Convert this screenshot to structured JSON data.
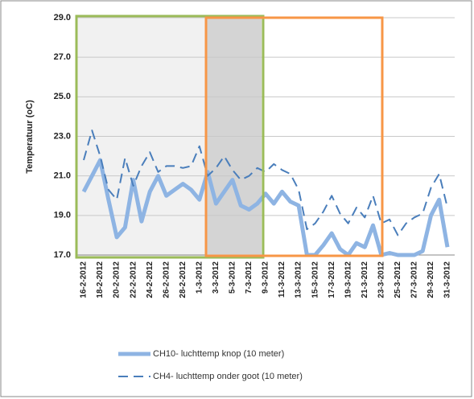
{
  "chart_data": {
    "type": "line",
    "y_label": "Temperatuur (oC)",
    "categories": [
      "16-2-2012",
      null,
      "18-2-2012",
      null,
      "20-2-2012",
      null,
      "22-2-2012",
      null,
      "24-2-2012",
      null,
      "26-2-2012",
      null,
      "28-2-2012",
      null,
      "1-3-2012",
      null,
      "3-3-2012",
      null,
      "5-3-2012",
      null,
      "7-3-2012",
      null,
      "9-3-2012",
      null,
      "11-3-2012",
      null,
      "13-3-2012",
      null,
      "15-3-2012",
      null,
      "17-3-2012",
      null,
      "19-3-2012",
      null,
      "21-3-2012",
      null,
      "23-3-2012",
      null,
      "25-3-2012",
      null,
      "27-3-2012",
      null,
      "29-3-2012",
      null,
      "31-3-2012"
    ],
    "series": [
      {
        "name": "CH10- luchttemp knop (10 meter)",
        "color": "#8eb4e3",
        "style": "solid",
        "values": [
          20.2,
          21.0,
          21.8,
          19.8,
          17.9,
          18.4,
          20.8,
          18.7,
          20.2,
          21.0,
          20.0,
          20.3,
          20.6,
          20.3,
          19.8,
          21.2,
          19.6,
          20.2,
          20.8,
          19.5,
          19.3,
          19.6,
          20.1,
          19.6,
          20.2,
          19.7,
          19.5,
          17.0,
          17.0,
          17.5,
          18.1,
          17.3,
          17.0,
          17.6,
          17.4,
          18.5,
          17.0,
          17.1,
          17.0,
          17.0,
          17.0,
          17.2,
          19.0,
          19.8,
          17.4
        ]
      },
      {
        "name": "CH4- luchttemp onder goot (10 meter)",
        "color": "#4a7ebb",
        "style": "dashed",
        "values": [
          21.8,
          23.3,
          22.0,
          20.3,
          19.8,
          21.9,
          20.5,
          21.5,
          22.2,
          21.2,
          21.5,
          21.5,
          21.4,
          21.5,
          22.5,
          21.0,
          21.4,
          22.0,
          21.3,
          20.8,
          21.0,
          21.4,
          21.2,
          21.6,
          21.3,
          21.1,
          20.3,
          18.3,
          18.6,
          19.2,
          20.0,
          19.1,
          18.6,
          19.4,
          18.9,
          20.0,
          18.6,
          18.8,
          18.0,
          18.6,
          18.9,
          19.1,
          20.4,
          21.1,
          19.4
        ]
      }
    ],
    "ylim": [
      17,
      29
    ],
    "yticks": [
      {
        "value": 17,
        "label": "17.0"
      },
      {
        "value": 19,
        "label": "19.0"
      },
      {
        "value": 21,
        "label": "21.0"
      },
      {
        "value": 23,
        "label": "23.0"
      },
      {
        "value": 25,
        "label": "25.0"
      },
      {
        "value": 27,
        "label": "27.0"
      },
      {
        "value": 29,
        "label": "29.0"
      }
    ],
    "grid": true
  }
}
